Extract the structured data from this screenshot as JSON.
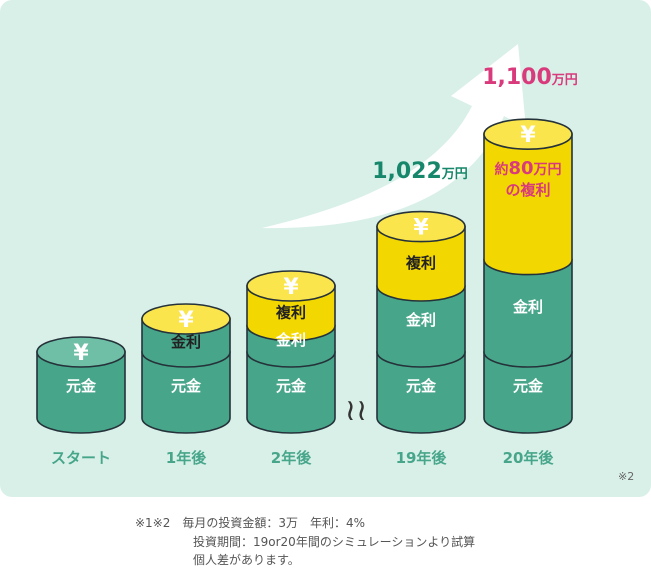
{
  "chart_data": {
    "type": "bar",
    "categories": [
      "スタート",
      "1年後",
      "2年後",
      "19年後",
      "20年後"
    ],
    "series": [
      {
        "name": "元金",
        "values": [
          1,
          1,
          1,
          1,
          1
        ]
      },
      {
        "name": "金利",
        "values": [
          0,
          0.5,
          0.4,
          1,
          1.4
        ]
      },
      {
        "name": "複利",
        "values": [
          0,
          0,
          0.6,
          0.9,
          1.9
        ]
      }
    ],
    "segment_labels": {
      "principal": "元金",
      "interest": "金利",
      "compound": "複利"
    },
    "yen_symbol": "¥",
    "totals": [
      {
        "category": "19年後",
        "value": "1,022",
        "unit": "万円"
      },
      {
        "category": "20年後",
        "value": "1,100",
        "unit": "万円"
      }
    ],
    "annotation_20": {
      "line1_prefix": "約",
      "line1_num": "80",
      "line1_unit": "万円",
      "line2": "の複利"
    },
    "axis_break": "≀≀",
    "colors": {
      "background": "#d9f0e9",
      "principal": "#47a68a",
      "principal_top": "#6fbfa6",
      "coin": "#f2d700",
      "coin_top": "#fbe54d",
      "outline": "#25323a",
      "total_green": "#16876a",
      "total_pink": "#d93a7c",
      "arrow": "#ffffff"
    }
  },
  "note_mark": "※2",
  "footnotes": {
    "line1": "※1※2　毎月の投資金額：3万　年利：4%",
    "line2": "投資期間：19or20年間のシミュレーションより試算",
    "line3": "個人差があります。"
  }
}
